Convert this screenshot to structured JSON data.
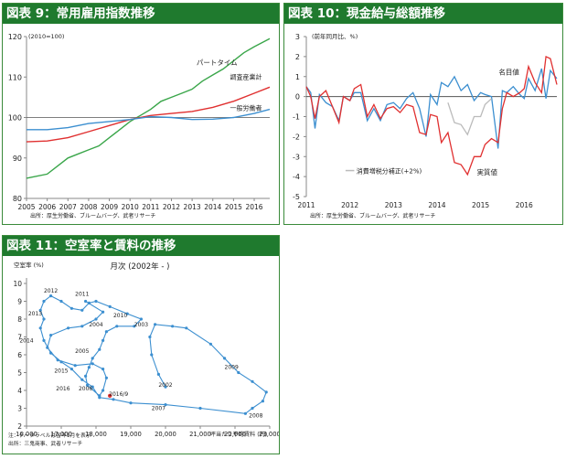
{
  "panels": {
    "p9": {
      "title": "図表 9：常用雇用指数推移",
      "source": "出所：厚生労働省、ブルームバーグ、武者リサーチ"
    },
    "p10": {
      "title": "図表 10：現金給与総額推移",
      "source": "出所：厚生労働省、ブルームバーグ、武者リサーチ"
    },
    "p11": {
      "title": "図表 11：空室率と賃料の推移",
      "source_note": "注：データラベルは各年1月を表示",
      "source": "出所：三鬼商事、武者リサーチ"
    }
  },
  "chart_data": [
    {
      "id": "employment-index",
      "type": "line",
      "unit_note": "(2010=100)",
      "x_ticks": [
        "2005",
        "2006",
        "2007",
        "2008",
        "2009",
        "2010",
        "2011",
        "2012",
        "2013",
        "2014",
        "2015",
        "2016"
      ],
      "xlim": [
        2005,
        2016.75
      ],
      "ylim": [
        80,
        120
      ],
      "y_ticks": [
        80,
        90,
        100,
        110,
        120
      ],
      "reference_line": 100,
      "series": [
        {
          "name": "パートタイム",
          "color": "#3aa64a",
          "points": [
            [
              2005,
              85
            ],
            [
              2006,
              86
            ],
            [
              2006.5,
              88
            ],
            [
              2007,
              90
            ],
            [
              2007.5,
              91
            ],
            [
              2008,
              92
            ],
            [
              2008.5,
              93
            ],
            [
              2009,
              95
            ],
            [
              2009.5,
              97
            ],
            [
              2010,
              99
            ],
            [
              2010.5,
              100.5
            ],
            [
              2011,
              102
            ],
            [
              2011.5,
              104
            ],
            [
              2012,
              105
            ],
            [
              2012.5,
              106
            ],
            [
              2013,
              107
            ],
            [
              2013.5,
              109
            ],
            [
              2014,
              110.5
            ],
            [
              2014.5,
              112
            ],
            [
              2015,
              114
            ],
            [
              2015.5,
              116
            ],
            [
              2016,
              117.5
            ],
            [
              2016.75,
              119.5
            ]
          ]
        },
        {
          "name": "調査産業計",
          "color": "#e03030",
          "points": [
            [
              2005,
              94
            ],
            [
              2006,
              94.2
            ],
            [
              2007,
              95
            ],
            [
              2008,
              96.5
            ],
            [
              2009,
              98
            ],
            [
              2010,
              99.5
            ],
            [
              2011,
              100.5
            ],
            [
              2012,
              101
            ],
            [
              2013,
              101.5
            ],
            [
              2014,
              102.5
            ],
            [
              2015,
              104
            ],
            [
              2016,
              106
            ],
            [
              2016.75,
              107.5
            ]
          ]
        },
        {
          "name": "一般労働者",
          "color": "#3c8fd0",
          "points": [
            [
              2005,
              97
            ],
            [
              2006,
              97
            ],
            [
              2007,
              97.5
            ],
            [
              2008,
              98.5
            ],
            [
              2009,
              99
            ],
            [
              2010,
              99.5
            ],
            [
              2011,
              100.2
            ],
            [
              2012,
              100
            ],
            [
              2013,
              99.5
            ],
            [
              2014,
              99.6
            ],
            [
              2015,
              100
            ],
            [
              2016,
              101
            ],
            [
              2016.75,
              102
            ]
          ]
        }
      ]
    },
    {
      "id": "cash-earnings",
      "type": "line",
      "unit_note": "(前年同月比、%)",
      "x_ticks": [
        "2011",
        "2012",
        "2013",
        "2014",
        "2015",
        "2016"
      ],
      "xlim": [
        2011,
        2016.75
      ],
      "ylim": [
        -5,
        3
      ],
      "y_ticks": [
        3,
        2,
        1,
        0,
        -1,
        -2,
        -3,
        -4,
        -5
      ],
      "series": [
        {
          "name": "名目値",
          "color": "#3c8fd0",
          "points": [
            [
              2011,
              0.5
            ],
            [
              2011.1,
              0.2
            ],
            [
              2011.2,
              -1.6
            ],
            [
              2011.3,
              0.1
            ],
            [
              2011.45,
              -0.3
            ],
            [
              2011.6,
              -0.5
            ],
            [
              2011.75,
              -1.2
            ],
            [
              2011.85,
              0
            ],
            [
              2012,
              -0.2
            ],
            [
              2012.1,
              0.2
            ],
            [
              2012.25,
              0.2
            ],
            [
              2012.4,
              -1.2
            ],
            [
              2012.55,
              -0.6
            ],
            [
              2012.7,
              -1.2
            ],
            [
              2012.85,
              -0.4
            ],
            [
              2013,
              -0.3
            ],
            [
              2013.15,
              -0.6
            ],
            [
              2013.3,
              -0.1
            ],
            [
              2013.45,
              0.2
            ],
            [
              2013.6,
              -0.6
            ],
            [
              2013.75,
              -2.0
            ],
            [
              2013.85,
              0.1
            ],
            [
              2014,
              -0.4
            ],
            [
              2014.1,
              0.7
            ],
            [
              2014.25,
              0.5
            ],
            [
              2014.4,
              1.0
            ],
            [
              2014.55,
              0.3
            ],
            [
              2014.7,
              0.6
            ],
            [
              2014.85,
              -0.2
            ],
            [
              2015,
              0.2
            ],
            [
              2015.1,
              0.1
            ],
            [
              2015.25,
              0
            ],
            [
              2015.4,
              -2.6
            ],
            [
              2015.5,
              0.3
            ],
            [
              2015.6,
              0.2
            ],
            [
              2015.75,
              0.5
            ],
            [
              2015.9,
              0.1
            ],
            [
              2016,
              -0.1
            ],
            [
              2016.1,
              0.9
            ],
            [
              2016.25,
              0.3
            ],
            [
              2016.4,
              1.4
            ],
            [
              2016.5,
              -0.1
            ],
            [
              2016.6,
              1.3
            ],
            [
              2016.75,
              0.9
            ]
          ]
        },
        {
          "name": "実質値",
          "color": "#e03030",
          "points": [
            [
              2011,
              0.5
            ],
            [
              2011.1,
              0
            ],
            [
              2011.2,
              -1.1
            ],
            [
              2011.3,
              0
            ],
            [
              2011.45,
              0.3
            ],
            [
              2011.6,
              -0.5
            ],
            [
              2011.75,
              -1.3
            ],
            [
              2011.85,
              0
            ],
            [
              2012,
              -0.2
            ],
            [
              2012.1,
              0.4
            ],
            [
              2012.25,
              0.6
            ],
            [
              2012.4,
              -1.0
            ],
            [
              2012.55,
              -0.4
            ],
            [
              2012.7,
              -1.1
            ],
            [
              2012.85,
              -0.6
            ],
            [
              2013,
              -0.5
            ],
            [
              2013.15,
              -0.8
            ],
            [
              2013.3,
              -0.4
            ],
            [
              2013.45,
              -0.5
            ],
            [
              2013.6,
              -1.8
            ],
            [
              2013.75,
              -1.9
            ],
            [
              2013.85,
              -0.9
            ],
            [
              2014,
              -1.0
            ],
            [
              2014.1,
              -2.3
            ],
            [
              2014.25,
              -1.8
            ],
            [
              2014.4,
              -3.3
            ],
            [
              2014.55,
              -3.4
            ],
            [
              2014.7,
              -3.9
            ],
            [
              2014.85,
              -3.0
            ],
            [
              2015,
              -3.0
            ],
            [
              2015.1,
              -2.4
            ],
            [
              2015.25,
              -2.1
            ],
            [
              2015.4,
              -2.3
            ],
            [
              2015.5,
              -0.6
            ],
            [
              2015.6,
              0.2
            ],
            [
              2015.75,
              0
            ],
            [
              2015.9,
              0.2
            ],
            [
              2016,
              0.4
            ],
            [
              2016.1,
              1.5
            ],
            [
              2016.25,
              0.7
            ],
            [
              2016.4,
              0.2
            ],
            [
              2016.5,
              2.0
            ],
            [
              2016.6,
              1.9
            ],
            [
              2016.75,
              0.6
            ]
          ]
        },
        {
          "name": "消費増税分補正(+2%)",
          "color": "#bbbbbb",
          "points": [
            [
              2014.25,
              -0.3
            ],
            [
              2014.4,
              -1.3
            ],
            [
              2014.55,
              -1.4
            ],
            [
              2014.7,
              -1.9
            ],
            [
              2014.85,
              -1.0
            ],
            [
              2015,
              -1.0
            ],
            [
              2015.1,
              -0.4
            ],
            [
              2015.25,
              -0.1
            ]
          ]
        }
      ]
    },
    {
      "id": "vacancy-rent",
      "type": "scatter",
      "title": "月次 (2002年 - )",
      "ylabel": "空室率 (%)",
      "xlabel": "坪当たり平均賃料 (円)",
      "xlim": [
        16000,
        23000
      ],
      "ylim": [
        2,
        10
      ],
      "x_ticks": [
        "16,000",
        "17,000",
        "18,000",
        "19,000",
        "20,000",
        "21,000",
        "22,000",
        "23,000"
      ],
      "y_ticks": [
        2,
        3,
        4,
        5,
        6,
        7,
        8,
        9,
        10
      ],
      "series": [
        {
          "name": "",
          "color": "#3c8fd0",
          "points": [
            [
              20000,
              4.2
            ],
            [
              19800,
              4.9
            ],
            [
              19600,
              6.0
            ],
            [
              19550,
              7.0
            ],
            [
              19700,
              7.7
            ],
            [
              20200,
              7.6
            ],
            [
              20600,
              7.5
            ],
            [
              21300,
              6.6
            ],
            [
              21700,
              5.8
            ],
            [
              22100,
              5.0
            ],
            [
              22500,
              4.5
            ],
            [
              22900,
              3.9
            ],
            [
              22800,
              3.4
            ],
            [
              22500,
              3.0
            ],
            [
              22300,
              2.7
            ],
            [
              21000,
              3.0
            ],
            [
              20000,
              3.2
            ],
            [
              19000,
              3.3
            ],
            [
              18500,
              3.5
            ],
            [
              18100,
              3.6
            ],
            [
              17900,
              4.2
            ],
            [
              17600,
              4.6
            ],
            [
              17300,
              5.2
            ],
            [
              17000,
              5.6
            ],
            [
              16700,
              6.1
            ],
            [
              16500,
              6.8
            ],
            [
              16400,
              7.5
            ],
            [
              16500,
              8.0
            ],
            [
              16400,
              8.5
            ],
            [
              16500,
              9.0
            ],
            [
              16700,
              9.3
            ],
            [
              17000,
              9.0
            ],
            [
              17300,
              8.6
            ],
            [
              17600,
              8.5
            ],
            [
              17800,
              8.9
            ],
            [
              18000,
              9.0
            ],
            [
              18400,
              8.7
            ],
            [
              18900,
              8.3
            ],
            [
              19300,
              8.0
            ],
            [
              19100,
              7.6
            ],
            [
              18600,
              7.6
            ],
            [
              18300,
              7.3
            ],
            [
              18200,
              6.8
            ],
            [
              18100,
              6.3
            ],
            [
              17900,
              5.8
            ],
            [
              17800,
              5.3
            ],
            [
              17700,
              4.8
            ],
            [
              17750,
              4.3
            ],
            [
              18100,
              3.7
            ],
            [
              18200,
              4.0
            ],
            [
              18300,
              4.7
            ],
            [
              18200,
              5.2
            ],
            [
              17900,
              5.5
            ],
            [
              17400,
              5.4
            ],
            [
              16900,
              5.7
            ],
            [
              16600,
              6.4
            ],
            [
              16700,
              7.1
            ],
            [
              17200,
              7.5
            ],
            [
              17600,
              7.6
            ],
            [
              18000,
              8.0
            ],
            [
              18200,
              8.4
            ],
            [
              17700,
              9.0
            ]
          ]
        }
      ],
      "annotations": [
        "2012",
        "2011",
        "2013",
        "2010",
        "2003",
        "2004",
        "2014",
        "2005",
        "2015",
        "2016",
        "2006",
        "2002",
        "2007",
        "2008",
        "2009",
        "2016/9"
      ],
      "latest_point": {
        "label": "2016/9",
        "x": 18400,
        "y": 3.7
      }
    }
  ]
}
